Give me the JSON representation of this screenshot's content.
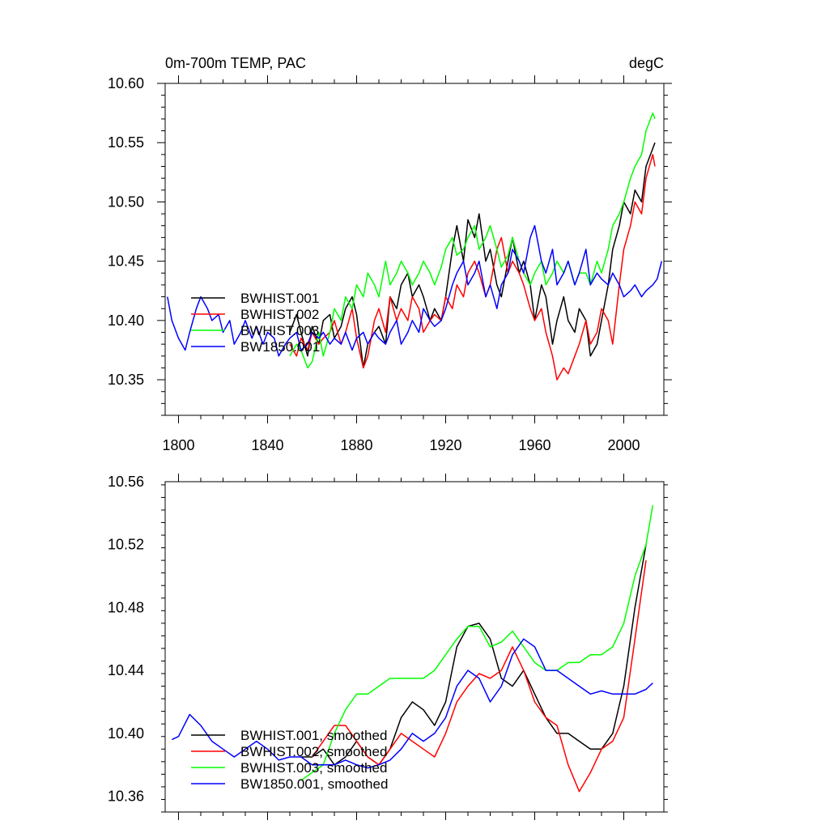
{
  "chart_data": [
    {
      "type": "line",
      "title_left": "0m-700m TEMP, PAC",
      "title_right": "degC",
      "xlabel": "",
      "ylabel": "",
      "xlim": [
        1794,
        2018
      ],
      "ylim": [
        10.32,
        10.6
      ],
      "xticks": [
        1800,
        1840,
        1880,
        1920,
        1960,
        2000
      ],
      "xtick_labels": [
        "1800",
        "1840",
        "1880",
        "1920",
        "1960",
        "2000"
      ],
      "yticks": [
        10.35,
        10.4,
        10.45,
        10.5,
        10.55,
        10.6
      ],
      "ytick_labels": [
        "10.35",
        "10.40",
        "10.45",
        "10.50",
        "10.55",
        "10.60"
      ],
      "show_xtick_labels": true,
      "grid": false,
      "legend_position": "bottom-left",
      "series": [
        {
          "name": "BWHIST.001",
          "color": "#000000",
          "x": [
            1850,
            1853,
            1855,
            1858,
            1860,
            1863,
            1865,
            1868,
            1870,
            1873,
            1875,
            1878,
            1880,
            1883,
            1885,
            1888,
            1890,
            1893,
            1895,
            1898,
            1900,
            1903,
            1905,
            1908,
            1910,
            1913,
            1915,
            1918,
            1920,
            1923,
            1925,
            1928,
            1930,
            1933,
            1935,
            1938,
            1940,
            1943,
            1945,
            1948,
            1950,
            1953,
            1955,
            1958,
            1960,
            1963,
            1965,
            1968,
            1970,
            1973,
            1975,
            1978,
            1980,
            1983,
            1985,
            1988,
            1990,
            1993,
            1995,
            1998,
            2000,
            2003,
            2005,
            2008,
            2010,
            2013,
            2014
          ],
          "y": [
            10.39,
            10.405,
            10.39,
            10.37,
            10.395,
            10.38,
            10.4,
            10.405,
            10.385,
            10.395,
            10.41,
            10.42,
            10.405,
            10.36,
            10.38,
            10.39,
            10.395,
            10.38,
            10.42,
            10.41,
            10.43,
            10.44,
            10.42,
            10.43,
            10.42,
            10.4,
            10.41,
            10.4,
            10.42,
            10.46,
            10.48,
            10.45,
            10.485,
            10.47,
            10.49,
            10.45,
            10.46,
            10.43,
            10.42,
            10.45,
            10.47,
            10.44,
            10.45,
            10.43,
            10.4,
            10.43,
            10.42,
            10.38,
            10.4,
            10.42,
            10.4,
            10.39,
            10.41,
            10.4,
            10.37,
            10.38,
            10.4,
            10.43,
            10.46,
            10.48,
            10.5,
            10.49,
            10.51,
            10.5,
            10.53,
            10.545,
            10.55
          ]
        },
        {
          "name": "BWHIST.002",
          "color": "#ff0000",
          "x": [
            1850,
            1853,
            1855,
            1858,
            1860,
            1863,
            1865,
            1868,
            1870,
            1873,
            1875,
            1878,
            1880,
            1883,
            1885,
            1888,
            1890,
            1893,
            1895,
            1898,
            1900,
            1903,
            1905,
            1908,
            1910,
            1913,
            1915,
            1918,
            1920,
            1923,
            1925,
            1928,
            1930,
            1933,
            1935,
            1938,
            1940,
            1943,
            1945,
            1948,
            1950,
            1953,
            1955,
            1958,
            1960,
            1963,
            1965,
            1968,
            1970,
            1973,
            1975,
            1978,
            1980,
            1983,
            1985,
            1988,
            1990,
            1993,
            1995,
            1998,
            2000,
            2003,
            2005,
            2008,
            2010,
            2013,
            2014
          ],
          "y": [
            10.38,
            10.37,
            10.385,
            10.375,
            10.39,
            10.38,
            10.385,
            10.39,
            10.4,
            10.38,
            10.39,
            10.41,
            10.385,
            10.36,
            10.37,
            10.4,
            10.41,
            10.39,
            10.42,
            10.4,
            10.41,
            10.4,
            10.42,
            10.41,
            10.39,
            10.4,
            10.405,
            10.4,
            10.42,
            10.41,
            10.43,
            10.42,
            10.44,
            10.45,
            10.44,
            10.42,
            10.43,
            10.46,
            10.47,
            10.44,
            10.45,
            10.44,
            10.43,
            10.41,
            10.4,
            10.41,
            10.39,
            10.37,
            10.35,
            10.36,
            10.355,
            10.37,
            10.38,
            10.4,
            10.38,
            10.39,
            10.41,
            10.4,
            10.38,
            10.43,
            10.46,
            10.48,
            10.5,
            10.49,
            10.52,
            10.54,
            10.53
          ]
        },
        {
          "name": "BWHIST.003",
          "color": "#00ff00",
          "x": [
            1850,
            1853,
            1855,
            1858,
            1860,
            1863,
            1865,
            1868,
            1870,
            1873,
            1875,
            1878,
            1880,
            1883,
            1885,
            1888,
            1890,
            1893,
            1895,
            1898,
            1900,
            1903,
            1905,
            1908,
            1910,
            1913,
            1915,
            1918,
            1920,
            1923,
            1925,
            1928,
            1930,
            1933,
            1935,
            1938,
            1940,
            1943,
            1945,
            1948,
            1950,
            1953,
            1955,
            1958,
            1960,
            1963,
            1965,
            1968,
            1970,
            1973,
            1975,
            1978,
            1980,
            1983,
            1985,
            1988,
            1990,
            1993,
            1995,
            1998,
            2000,
            2003,
            2005,
            2008,
            2010,
            2013,
            2014
          ],
          "y": [
            10.37,
            10.38,
            10.375,
            10.36,
            10.365,
            10.39,
            10.37,
            10.39,
            10.41,
            10.4,
            10.42,
            10.41,
            10.43,
            10.42,
            10.44,
            10.43,
            10.42,
            10.45,
            10.43,
            10.44,
            10.45,
            10.44,
            10.43,
            10.44,
            10.45,
            10.44,
            10.43,
            10.445,
            10.46,
            10.47,
            10.455,
            10.46,
            10.47,
            10.48,
            10.46,
            10.47,
            10.48,
            10.46,
            10.445,
            10.455,
            10.47,
            10.45,
            10.44,
            10.43,
            10.44,
            10.45,
            10.43,
            10.44,
            10.45,
            10.44,
            10.45,
            10.43,
            10.44,
            10.44,
            10.43,
            10.45,
            10.44,
            10.46,
            10.48,
            10.49,
            10.5,
            10.52,
            10.53,
            10.54,
            10.56,
            10.575,
            10.57
          ]
        },
        {
          "name": "BW1850.001",
          "color": "#0000ff",
          "x": [
            1795,
            1797,
            1800,
            1803,
            1805,
            1808,
            1810,
            1813,
            1815,
            1818,
            1820,
            1823,
            1825,
            1828,
            1830,
            1833,
            1835,
            1838,
            1840,
            1843,
            1845,
            1848,
            1850,
            1853,
            1855,
            1858,
            1860,
            1863,
            1865,
            1868,
            1870,
            1873,
            1875,
            1878,
            1880,
            1883,
            1885,
            1888,
            1890,
            1893,
            1895,
            1898,
            1900,
            1903,
            1905,
            1908,
            1910,
            1913,
            1915,
            1918,
            1920,
            1923,
            1925,
            1928,
            1930,
            1933,
            1935,
            1938,
            1940,
            1943,
            1945,
            1948,
            1950,
            1953,
            1955,
            1958,
            1960,
            1963,
            1965,
            1968,
            1970,
            1973,
            1975,
            1978,
            1980,
            1983,
            1985,
            1988,
            1990,
            1993,
            1995,
            1998,
            2000,
            2003,
            2005,
            2008,
            2010,
            2013,
            2015,
            2017
          ],
          "y": [
            10.42,
            10.4,
            10.385,
            10.375,
            10.39,
            10.41,
            10.42,
            10.41,
            10.4,
            10.405,
            10.39,
            10.4,
            10.38,
            10.39,
            10.4,
            10.385,
            10.395,
            10.38,
            10.39,
            10.385,
            10.37,
            10.38,
            10.385,
            10.39,
            10.375,
            10.38,
            10.39,
            10.385,
            10.39,
            10.38,
            10.385,
            10.38,
            10.39,
            10.375,
            10.385,
            10.39,
            10.38,
            10.39,
            10.385,
            10.38,
            10.39,
            10.4,
            10.38,
            10.39,
            10.4,
            10.39,
            10.41,
            10.4,
            10.395,
            10.4,
            10.41,
            10.43,
            10.44,
            10.45,
            10.43,
            10.44,
            10.45,
            10.42,
            10.43,
            10.41,
            10.43,
            10.44,
            10.46,
            10.45,
            10.44,
            10.47,
            10.48,
            10.45,
            10.44,
            10.46,
            10.43,
            10.44,
            10.45,
            10.43,
            10.44,
            10.46,
            10.43,
            10.44,
            10.435,
            10.43,
            10.44,
            10.43,
            10.42,
            10.425,
            10.43,
            10.42,
            10.425,
            10.43,
            10.435,
            10.45
          ]
        }
      ]
    },
    {
      "type": "line",
      "title_left": "",
      "title_right": "",
      "xlabel": "",
      "ylabel": "",
      "xlim": [
        1794,
        2018
      ],
      "ylim": [
        10.35,
        10.56
      ],
      "xticks": [
        1800,
        1840,
        1880,
        1920,
        1960,
        2000
      ],
      "xtick_labels": [
        "1800",
        "1840",
        "1880",
        "1920",
        "1960",
        "2000"
      ],
      "yticks": [
        10.36,
        10.4,
        10.44,
        10.48,
        10.52,
        10.56
      ],
      "ytick_labels": [
        "10.36",
        "10.40",
        "10.44",
        "10.48",
        "10.52",
        "10.56"
      ],
      "show_xtick_labels": false,
      "grid": false,
      "legend_position": "bottom-left",
      "series": [
        {
          "name": "BWHIST.001, smoothed",
          "color": "#000000",
          "x": [
            1855,
            1860,
            1865,
            1870,
            1875,
            1880,
            1885,
            1890,
            1895,
            1900,
            1905,
            1910,
            1915,
            1920,
            1925,
            1930,
            1935,
            1940,
            1945,
            1950,
            1955,
            1960,
            1965,
            1970,
            1975,
            1980,
            1985,
            1990,
            1995,
            2000,
            2005,
            2010
          ],
          "y": [
            10.385,
            10.385,
            10.39,
            10.38,
            10.385,
            10.395,
            10.385,
            10.38,
            10.39,
            10.41,
            10.42,
            10.415,
            10.405,
            10.42,
            10.455,
            10.468,
            10.47,
            10.46,
            10.435,
            10.43,
            10.44,
            10.425,
            10.41,
            10.4,
            10.4,
            10.395,
            10.39,
            10.39,
            10.4,
            10.43,
            10.48,
            10.52
          ]
        },
        {
          "name": "BWHIST.002, smoothed",
          "color": "#ff0000",
          "x": [
            1860,
            1865,
            1870,
            1875,
            1880,
            1885,
            1890,
            1895,
            1900,
            1905,
            1910,
            1915,
            1920,
            1925,
            1930,
            1935,
            1940,
            1945,
            1950,
            1955,
            1960,
            1965,
            1970,
            1975,
            1980,
            1985,
            1990,
            1995,
            2000,
            2005,
            2010
          ],
          "y": [
            10.385,
            10.395,
            10.405,
            10.405,
            10.395,
            10.385,
            10.38,
            10.39,
            10.4,
            10.395,
            10.39,
            10.385,
            10.4,
            10.42,
            10.43,
            10.438,
            10.435,
            10.44,
            10.455,
            10.44,
            10.42,
            10.41,
            10.405,
            10.38,
            10.363,
            10.375,
            10.39,
            10.395,
            10.41,
            10.46,
            10.51
          ]
        },
        {
          "name": "BWHIST.003, smoothed",
          "color": "#00ff00",
          "x": [
            1855,
            1860,
            1865,
            1870,
            1875,
            1880,
            1885,
            1890,
            1895,
            1900,
            1905,
            1910,
            1915,
            1920,
            1925,
            1930,
            1935,
            1940,
            1945,
            1950,
            1955,
            1960,
            1965,
            1970,
            1975,
            1980,
            1985,
            1990,
            1995,
            2000,
            2005,
            2010,
            2013
          ],
          "y": [
            10.37,
            10.375,
            10.38,
            10.4,
            10.415,
            10.425,
            10.425,
            10.43,
            10.435,
            10.435,
            10.435,
            10.435,
            10.44,
            10.45,
            10.46,
            10.468,
            10.468,
            10.455,
            10.458,
            10.465,
            10.455,
            10.445,
            10.44,
            10.44,
            10.445,
            10.445,
            10.45,
            10.45,
            10.455,
            10.47,
            10.5,
            10.52,
            10.545
          ]
        },
        {
          "name": "BW1850.001, smoothed",
          "color": "#0000ff",
          "x": [
            1797,
            1800,
            1805,
            1810,
            1815,
            1820,
            1825,
            1830,
            1835,
            1840,
            1845,
            1850,
            1855,
            1860,
            1865,
            1870,
            1875,
            1880,
            1885,
            1890,
            1895,
            1900,
            1905,
            1910,
            1915,
            1920,
            1925,
            1930,
            1935,
            1940,
            1945,
            1950,
            1955,
            1960,
            1965,
            1970,
            1975,
            1980,
            1985,
            1990,
            1995,
            2000,
            2005,
            2010,
            2013
          ],
          "y": [
            10.396,
            10.398,
            10.412,
            10.405,
            10.395,
            10.39,
            10.385,
            10.39,
            10.395,
            10.39,
            10.383,
            10.385,
            10.385,
            10.38,
            10.38,
            10.38,
            10.383,
            10.38,
            10.378,
            10.38,
            10.383,
            10.39,
            10.4,
            10.395,
            10.4,
            10.41,
            10.43,
            10.44,
            10.435,
            10.42,
            10.43,
            10.45,
            10.46,
            10.455,
            10.44,
            10.44,
            10.435,
            10.43,
            10.425,
            10.427,
            10.425,
            10.425,
            10.425,
            10.428,
            10.432
          ]
        }
      ]
    }
  ]
}
